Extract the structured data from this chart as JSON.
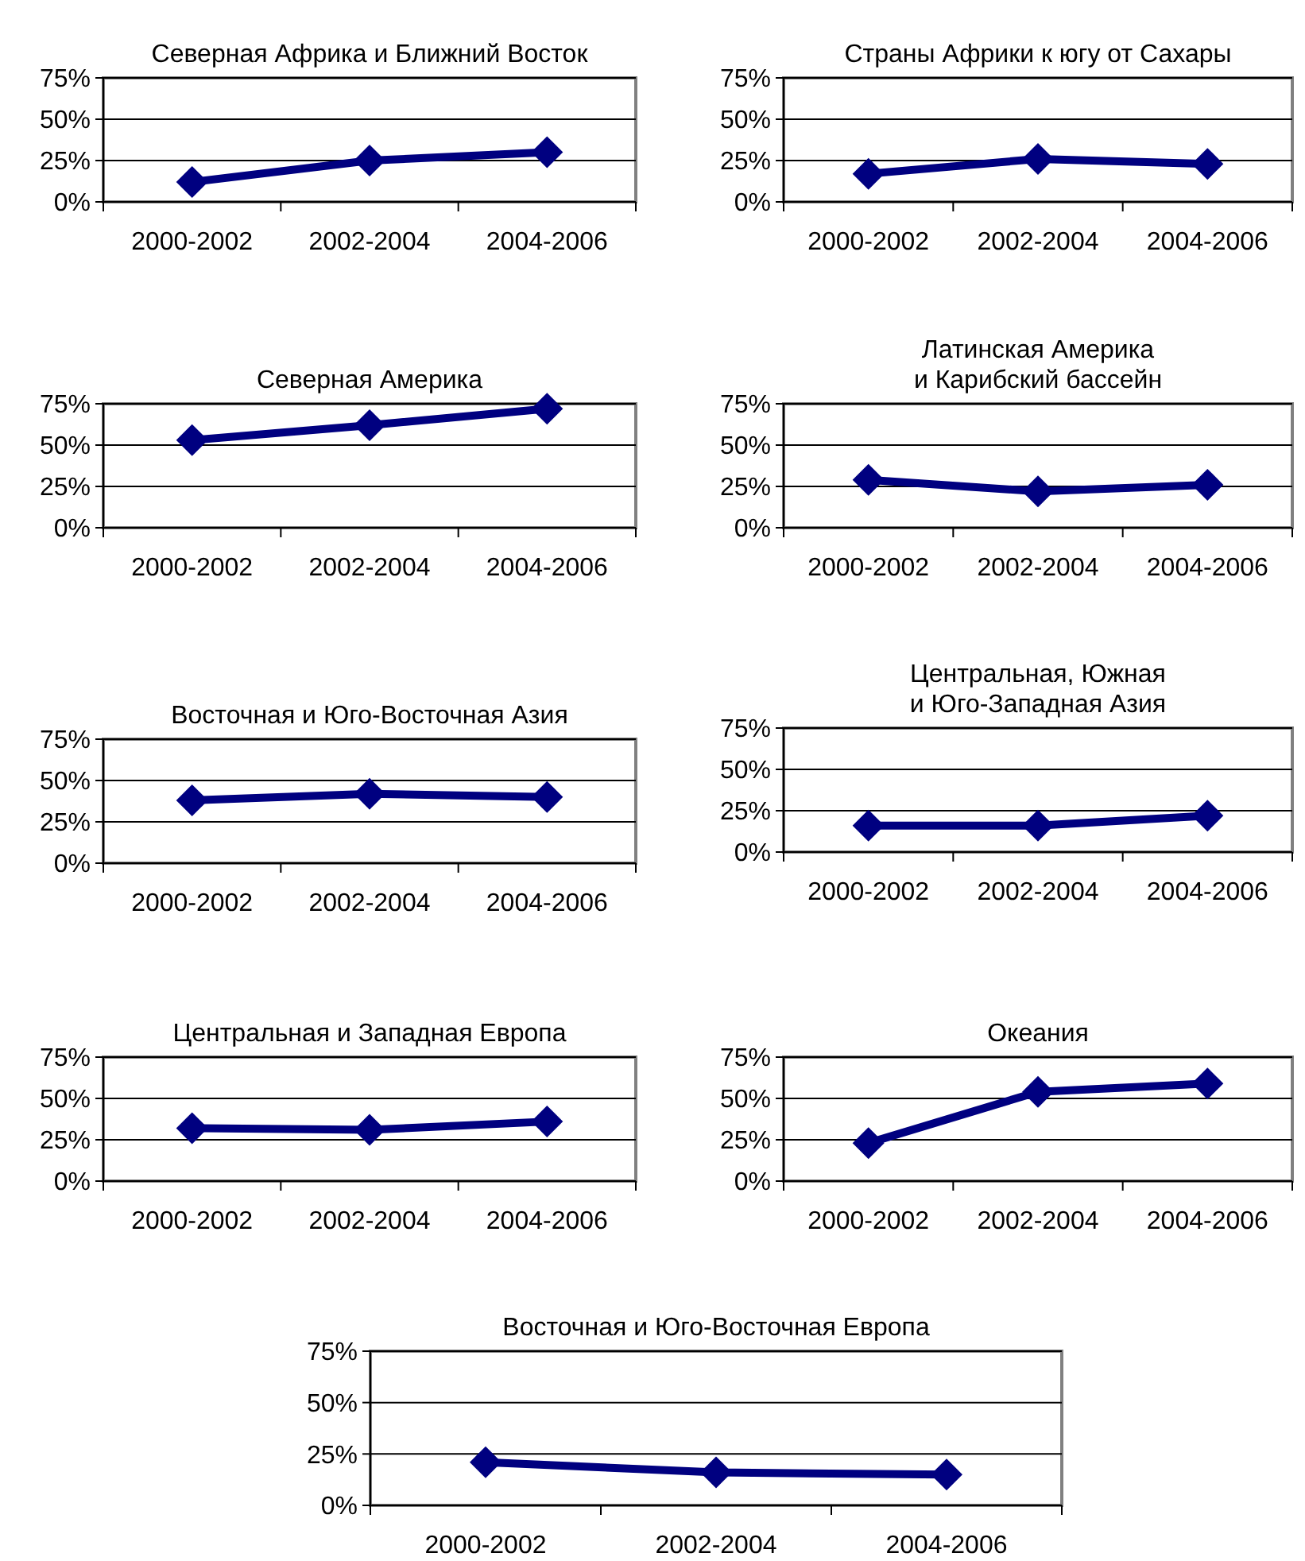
{
  "chart_data": [
    {
      "type": "line",
      "title": "Северная Африка и Ближний Восток",
      "categories": [
        "2000-2002",
        "2002-2004",
        "2004-2006"
      ],
      "series": [
        {
          "color": "#000080",
          "values": [
            12,
            25,
            30
          ]
        }
      ],
      "ylim": [
        0,
        75
      ],
      "yticks": [
        {
          "value": 0,
          "label": "0%"
        },
        {
          "value": 25,
          "label": "25%"
        },
        {
          "value": 50,
          "label": "50%"
        },
        {
          "value": 75,
          "label": "75%"
        }
      ],
      "grid": "y",
      "marker": "diamond"
    },
    {
      "type": "line",
      "title": "Страны Африки к югу от Сахары",
      "categories": [
        "2000-2002",
        "2002-2004",
        "2004-2006"
      ],
      "series": [
        {
          "color": "#000080",
          "values": [
            17,
            26,
            23
          ]
        }
      ],
      "ylim": [
        0,
        75
      ],
      "yticks": [
        {
          "value": 0,
          "label": "0%"
        },
        {
          "value": 25,
          "label": "25%"
        },
        {
          "value": 50,
          "label": "50%"
        },
        {
          "value": 75,
          "label": "75%"
        }
      ],
      "grid": "y",
      "marker": "diamond"
    },
    {
      "type": "line",
      "title": "Северная Америка",
      "categories": [
        "2000-2002",
        "2002-2004",
        "2004-2006"
      ],
      "series": [
        {
          "color": "#000080",
          "values": [
            53,
            62,
            72
          ]
        }
      ],
      "ylim": [
        0,
        75
      ],
      "yticks": [
        {
          "value": 0,
          "label": "0%"
        },
        {
          "value": 25,
          "label": "25%"
        },
        {
          "value": 50,
          "label": "50%"
        },
        {
          "value": 75,
          "label": "75%"
        }
      ],
      "grid": "y",
      "marker": "diamond"
    },
    {
      "type": "line",
      "title": "Латинская Америка\nи Карибский бассейн",
      "categories": [
        "2000-2002",
        "2002-2004",
        "2004-2006"
      ],
      "series": [
        {
          "color": "#000080",
          "values": [
            29,
            22,
            26
          ]
        }
      ],
      "ylim": [
        0,
        75
      ],
      "yticks": [
        {
          "value": 0,
          "label": "0%"
        },
        {
          "value": 25,
          "label": "25%"
        },
        {
          "value": 50,
          "label": "50%"
        },
        {
          "value": 75,
          "label": "75%"
        }
      ],
      "grid": "y",
      "marker": "diamond"
    },
    {
      "type": "line",
      "title": "Восточная и Юго-Восточная Азия",
      "categories": [
        "2000-2002",
        "2002-2004",
        "2004-2006"
      ],
      "series": [
        {
          "color": "#000080",
          "values": [
            38,
            42,
            40
          ]
        }
      ],
      "ylim": [
        0,
        75
      ],
      "yticks": [
        {
          "value": 0,
          "label": "0%"
        },
        {
          "value": 25,
          "label": "25%"
        },
        {
          "value": 50,
          "label": "50%"
        },
        {
          "value": 75,
          "label": "75%"
        }
      ],
      "grid": "y",
      "marker": "diamond"
    },
    {
      "type": "line",
      "title": "Центральная, Южная\nи Юго-Западная Азия",
      "categories": [
        "2000-2002",
        "2002-2004",
        "2004-2006"
      ],
      "series": [
        {
          "color": "#000080",
          "values": [
            16,
            16,
            22
          ]
        }
      ],
      "ylim": [
        0,
        75
      ],
      "yticks": [
        {
          "value": 0,
          "label": "0%"
        },
        {
          "value": 25,
          "label": "25%"
        },
        {
          "value": 50,
          "label": "50%"
        },
        {
          "value": 75,
          "label": "75%"
        }
      ],
      "grid": "y",
      "marker": "diamond"
    },
    {
      "type": "line",
      "title": "Центральная и Западная Европа",
      "categories": [
        "2000-2002",
        "2002-2004",
        "2004-2006"
      ],
      "series": [
        {
          "color": "#000080",
          "values": [
            32,
            31,
            36
          ]
        }
      ],
      "ylim": [
        0,
        75
      ],
      "yticks": [
        {
          "value": 0,
          "label": "0%"
        },
        {
          "value": 25,
          "label": "25%"
        },
        {
          "value": 50,
          "label": "50%"
        },
        {
          "value": 75,
          "label": "75%"
        }
      ],
      "grid": "y",
      "marker": "diamond"
    },
    {
      "type": "line",
      "title": "Океания",
      "categories": [
        "2000-2002",
        "2002-2004",
        "2004-2006"
      ],
      "series": [
        {
          "color": "#000080",
          "values": [
            23,
            54,
            59
          ]
        }
      ],
      "ylim": [
        0,
        75
      ],
      "yticks": [
        {
          "value": 0,
          "label": "0%"
        },
        {
          "value": 25,
          "label": "25%"
        },
        {
          "value": 50,
          "label": "50%"
        },
        {
          "value": 75,
          "label": "75%"
        }
      ],
      "grid": "y",
      "marker": "diamond"
    },
    {
      "type": "line",
      "title": "Восточная и Юго-Восточная Европа",
      "categories": [
        "2000-2002",
        "2002-2004",
        "2004-2006"
      ],
      "series": [
        {
          "color": "#000080",
          "values": [
            21,
            16,
            15
          ]
        }
      ],
      "ylim": [
        0,
        75
      ],
      "yticks": [
        {
          "value": 0,
          "label": "0%"
        },
        {
          "value": 25,
          "label": "25%"
        },
        {
          "value": 50,
          "label": "50%"
        },
        {
          "value": 75,
          "label": "75%"
        }
      ],
      "grid": "y",
      "marker": "diamond"
    }
  ]
}
